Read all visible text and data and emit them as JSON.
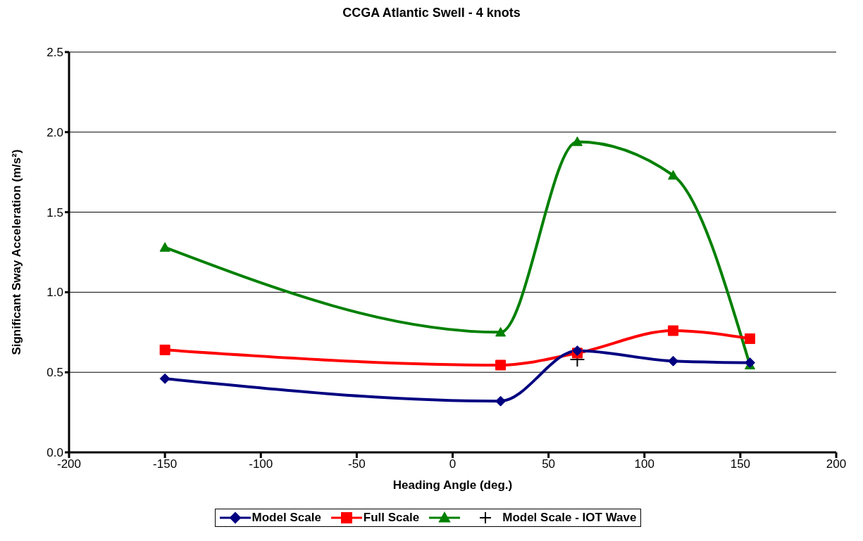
{
  "chart_data": {
    "type": "line",
    "title": "CCGA Atlantic Swell - 4 knots",
    "xlabel": "Heading Angle (deg.)",
    "ylabel": "Significant Sway Acceleration (m/s²)",
    "xlim": [
      -200,
      200
    ],
    "xticks": [
      -200,
      -150,
      -100,
      -50,
      0,
      50,
      100,
      150,
      200
    ],
    "ylim": [
      0,
      2.5
    ],
    "yticks": [
      {
        "value": 0,
        "label": "0.0"
      },
      {
        "value": 0.5,
        "label": "0.5"
      },
      {
        "value": 1,
        "label": "1.0"
      },
      {
        "value": 1.5,
        "label": "1.5"
      },
      {
        "value": 2,
        "label": "2.0"
      },
      {
        "value": 2.5,
        "label": "2.5"
      }
    ],
    "grid": "y",
    "legend": "bottom",
    "x": [
      -150,
      25,
      65,
      115,
      155
    ],
    "series": [
      {
        "name": "Model Scale",
        "color": "#000080",
        "marker": "diamond",
        "values": [
          0.46,
          0.32,
          0.635,
          0.57,
          0.56
        ]
      },
      {
        "name": "Full Scale",
        "color": "#ff0000",
        "marker": "square",
        "values": [
          0.64,
          0.545,
          0.62,
          0.76,
          0.71
        ]
      },
      {
        "color": "#008000",
        "marker": "triangle",
        "values": [
          1.28,
          0.75,
          1.94,
          1.73,
          0.545
        ]
      },
      {
        "name": "Model Scale - IOT Wave",
        "type": "scatter",
        "color": "#000000",
        "marker": "cross",
        "x": [
          65
        ],
        "values": [
          0.58
        ]
      }
    ]
  }
}
